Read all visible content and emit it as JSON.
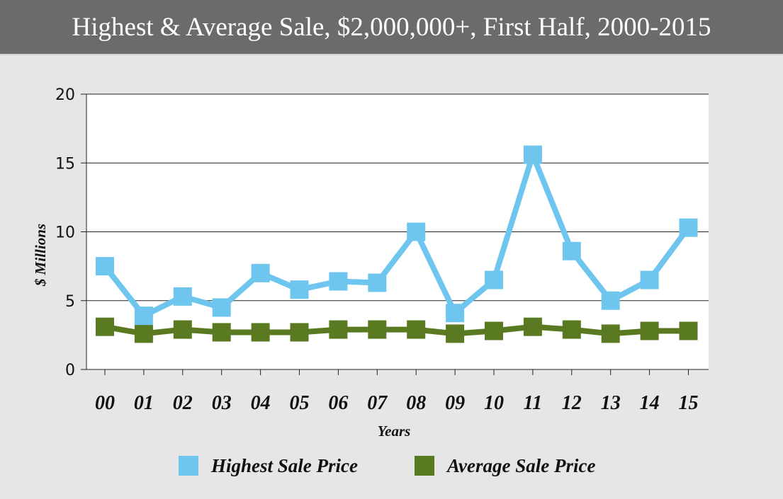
{
  "title": "Highest & Average Sale, $2,000,000+, First Half, 2000-2015",
  "colors": {
    "highest": "#6ec6ef",
    "average": "#5a7a22",
    "header_bg": "#6b6b6b",
    "page_bg": "#e6e6e6"
  },
  "chart_data": {
    "type": "line",
    "title": "Highest & Average Sale, $2,000,000+, First Half, 2000-2015",
    "xlabel": "Years",
    "ylabel": "$ Millions",
    "categories": [
      "00",
      "01",
      "02",
      "03",
      "04",
      "05",
      "06",
      "07",
      "08",
      "09",
      "10",
      "11",
      "12",
      "13",
      "14",
      "15"
    ],
    "ylim": [
      0,
      20
    ],
    "yticks": [
      0,
      5,
      10,
      15,
      20
    ],
    "grid": true,
    "legend_position": "bottom",
    "series": [
      {
        "name": "Highest Sale Price",
        "color": "#6ec6ef",
        "values": [
          7.5,
          3.9,
          5.3,
          4.5,
          7.0,
          5.8,
          6.4,
          6.3,
          10.0,
          4.1,
          6.5,
          15.6,
          8.6,
          5.0,
          6.5,
          10.3
        ]
      },
      {
        "name": "Average Sale Price",
        "color": "#5a7a22",
        "values": [
          3.1,
          2.6,
          2.9,
          2.7,
          2.7,
          2.7,
          2.9,
          2.9,
          2.9,
          2.6,
          2.8,
          3.1,
          2.9,
          2.6,
          2.8,
          2.8
        ]
      }
    ]
  }
}
